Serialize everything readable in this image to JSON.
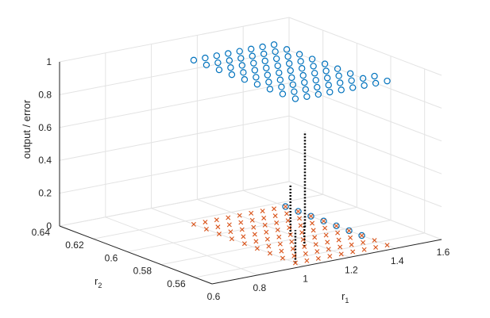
{
  "chart_data": {
    "type": "scatter",
    "projection": "3d",
    "title": "",
    "xlabel": "r",
    "xlabel_sub": "1",
    "ylabel": "r",
    "ylabel_sub": "2",
    "zlabel": "output / error",
    "xlim": [
      0.6,
      1.6
    ],
    "ylim": [
      0.55,
      0.64
    ],
    "zlim": [
      0,
      1
    ],
    "xticks": [
      "0.6",
      "0.8",
      "1",
      "1.2",
      "1.4",
      "1.6"
    ],
    "yticks": [
      "0.56",
      "0.58",
      "0.6",
      "0.62",
      "0.64"
    ],
    "zticks": [
      "0",
      "0.2",
      "0.4",
      "0.6",
      "0.8",
      "1"
    ],
    "grid": true,
    "grid_x_from": 1.0,
    "grid_x_to": 1.4,
    "grid_x_step": 0.05,
    "grid_y_from": 0.555,
    "grid_y_to": 0.615,
    "grid_y_step": 0.0075,
    "colors": {
      "output": "#0072bd",
      "output_high": "#0072bd",
      "error": "#d95319",
      "error_line": "#000000",
      "axis": "#222222",
      "grid": "#e3e3e3"
    },
    "series": [
      {
        "marker": "circle",
        "description_of_rule": "output is 1 where r1 + r2 > threshold, else 0",
        "threshold": 1.97
      },
      {
        "marker": "x",
        "description_of_rule": "error is 0 where r1 + r2 > threshold, else 1",
        "threshold": 1.97
      }
    ],
    "error_bars": [
      {
        "x": 1.0,
        "y": 0.555,
        "z_low": 0,
        "z_high": 0.2
      },
      {
        "x": 1.15,
        "y": 0.57,
        "z_low": 0,
        "z_high": 0.15
      },
      {
        "x": 1.2,
        "y": 0.585,
        "z_low": 0,
        "z_high": 0.3
      },
      {
        "x": 1.3,
        "y": 0.59,
        "z_low": 0,
        "z_high": 0.58
      }
    ]
  }
}
